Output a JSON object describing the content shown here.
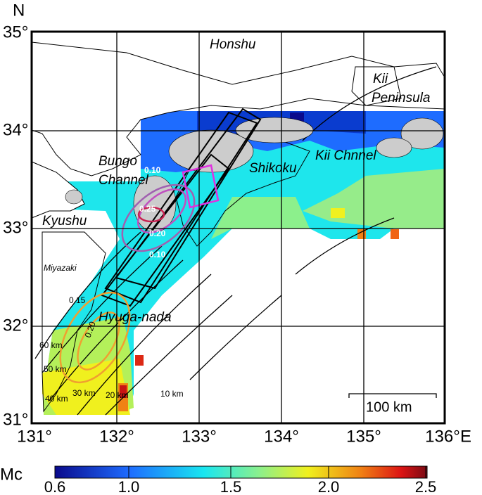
{
  "map": {
    "lat_labels": [
      "35°",
      "34°",
      "33°",
      "32°",
      "31°"
    ],
    "lat_axis": "N",
    "lon_labels": [
      "131°",
      "132°",
      "133°",
      "134°",
      "135°",
      "136°"
    ],
    "lon_axis": "E",
    "places": [
      "Honshu",
      "Kii",
      "Peninsula",
      "Bungo",
      "Channel",
      "Shikoku",
      "Kii Chnnel",
      "Kyushu",
      "Miyazaki",
      "Hyuga-nada"
    ],
    "contour_labels": [
      "0.10",
      "0.25",
      "0.20",
      "0.10",
      "0.15",
      "0.20"
    ],
    "depth_labels": [
      "60 km",
      "50 km",
      "40 km",
      "30 km",
      "20 km",
      "10 km"
    ],
    "scale_label": "100 km"
  },
  "colorbar": {
    "title": "Mc",
    "ticks": [
      "0.6",
      "1.0",
      "1.5",
      "2.0",
      "2.5"
    ]
  }
}
